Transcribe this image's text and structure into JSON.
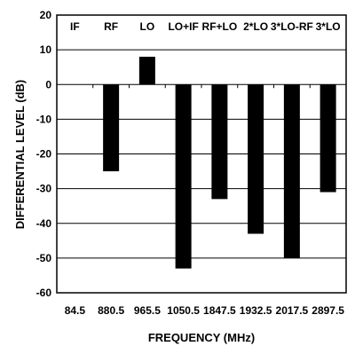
{
  "chart_data": {
    "type": "bar",
    "categories": [
      "IF",
      "RF",
      "LO",
      "LO+IF",
      "RF+LO",
      "2*LO",
      "3*LO-RF",
      "3*LO"
    ],
    "x_tick_labels": [
      "84.5",
      "880.5",
      "965.5",
      "1050.5",
      "1847.5",
      "1932.5",
      "2017.5",
      "2897.5"
    ],
    "values": [
      0,
      -25,
      8,
      -53,
      -33,
      -43,
      -50,
      -31
    ],
    "xlabel": "FREQUENCY (MHz)",
    "ylabel": "DIFFERENTIAL LEVEL (dB)",
    "ylim": [
      -60,
      20
    ],
    "yticks": [
      20,
      10,
      0,
      -10,
      -20,
      -30,
      -40,
      -50,
      -60
    ],
    "grid": true,
    "bar_color": "#000000"
  }
}
